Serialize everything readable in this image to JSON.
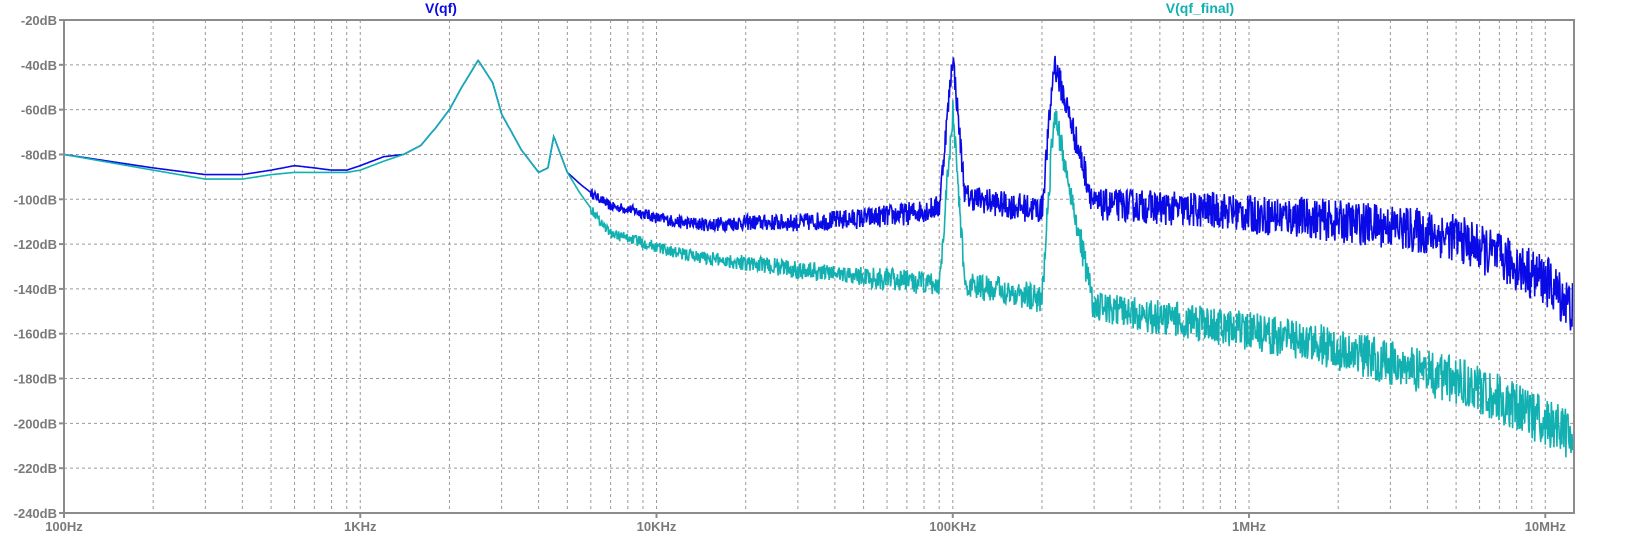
{
  "chart_data": {
    "type": "line",
    "title": "",
    "xlabel": "",
    "ylabel": "",
    "x_scale": "log",
    "xlim": [
      100,
      12500000
    ],
    "ylim": [
      -240,
      -20
    ],
    "grid": true,
    "legend_placement": "top",
    "y_ticks": [
      {
        "value": -20,
        "label": "-20dB"
      },
      {
        "value": -40,
        "label": "-40dB"
      },
      {
        "value": -60,
        "label": "-60dB"
      },
      {
        "value": -80,
        "label": "-80dB"
      },
      {
        "value": -100,
        "label": "-100dB"
      },
      {
        "value": -120,
        "label": "-120dB"
      },
      {
        "value": -140,
        "label": "-140dB"
      },
      {
        "value": -160,
        "label": "-160dB"
      },
      {
        "value": -180,
        "label": "-180dB"
      },
      {
        "value": -200,
        "label": "-200dB"
      },
      {
        "value": -220,
        "label": "-220dB"
      },
      {
        "value": -240,
        "label": "-240dB"
      }
    ],
    "x_ticks": [
      {
        "value": 100,
        "label": "100Hz"
      },
      {
        "value": 1000,
        "label": "1KHz"
      },
      {
        "value": 10000,
        "label": "10KHz"
      },
      {
        "value": 100000,
        "label": "100KHz"
      },
      {
        "value": 1000000,
        "label": "1MHz"
      },
      {
        "value": 10000000,
        "label": "10MHz"
      }
    ],
    "series": [
      {
        "name": "V(qf)",
        "color": "#0a0ae6",
        "x": [
          100,
          200,
          300,
          400,
          500,
          600,
          700,
          800,
          900,
          1000,
          1200,
          1400,
          1600,
          1800,
          2000,
          2200,
          2500,
          2800,
          3000,
          3500,
          4000,
          4300,
          4500,
          5000,
          5500,
          6000,
          6500,
          7000,
          8000,
          9000,
          10000,
          12000,
          15000,
          20000,
          30000,
          50000,
          70000,
          90000,
          100000,
          110000,
          150000,
          200000,
          220000,
          300000,
          400000,
          500000,
          600000,
          700000,
          800000,
          900000,
          1000000,
          1500000,
          2000000,
          3000000,
          5000000,
          7000000,
          10000000,
          12500000
        ],
        "y": [
          -80,
          -86,
          -89,
          -89,
          -87,
          -85,
          -86,
          -87,
          -87,
          -85,
          -81,
          -80,
          -76,
          -68,
          -60,
          -50,
          -38,
          -48,
          -62,
          -78,
          -88,
          -86,
          -72,
          -88,
          -93,
          -97,
          -100,
          -103,
          -104,
          -106,
          -108,
          -110,
          -111,
          -110,
          -110,
          -108,
          -106,
          -103,
          -35,
          -98,
          -102,
          -104,
          -38,
          -102,
          -102,
          -103,
          -104,
          -104,
          -104,
          -105,
          -106,
          -107,
          -109,
          -111,
          -116,
          -125,
          -135,
          -148
        ]
      },
      {
        "name": "V(qf_final)",
        "color": "#12b0b0",
        "x": [
          100,
          200,
          300,
          400,
          500,
          600,
          700,
          800,
          900,
          1000,
          1200,
          1400,
          1600,
          1800,
          2000,
          2200,
          2500,
          2800,
          3000,
          3500,
          4000,
          4300,
          4500,
          5000,
          5500,
          6000,
          6500,
          7000,
          8000,
          9000,
          10000,
          12000,
          15000,
          20000,
          30000,
          50000,
          70000,
          90000,
          100000,
          110000,
          150000,
          200000,
          220000,
          300000,
          400000,
          500000,
          600000,
          700000,
          800000,
          900000,
          1000000,
          1500000,
          2000000,
          3000000,
          5000000,
          7000000,
          10000000,
          12500000
        ],
        "y": [
          -80,
          -87,
          -91,
          -91,
          -89,
          -88,
          -88,
          -88,
          -88,
          -87,
          -83,
          -80,
          -76,
          -68,
          -60,
          -50,
          -38,
          -48,
          -62,
          -78,
          -88,
          -86,
          -72,
          -88,
          -97,
          -104,
          -110,
          -115,
          -117,
          -119,
          -121,
          -124,
          -126,
          -128,
          -131,
          -134,
          -136,
          -138,
          -60,
          -138,
          -140,
          -144,
          -60,
          -148,
          -150,
          -152,
          -153,
          -155,
          -156,
          -157,
          -158,
          -162,
          -166,
          -172,
          -180,
          -188,
          -198,
          -205
        ]
      }
    ]
  }
}
